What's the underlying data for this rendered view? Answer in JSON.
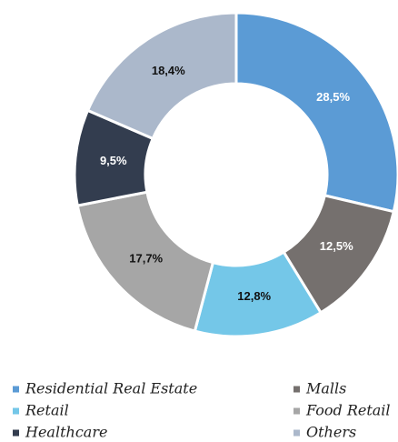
{
  "chart_data": {
    "type": "donut",
    "categories": [
      "Residential Real Estate",
      "Malls",
      "Retail",
      "Food Retail",
      "Healthcare",
      "Others"
    ],
    "values": [
      28.5,
      12.5,
      12.8,
      17.7,
      9.5,
      18.4
    ],
    "value_labels": [
      "28,5%",
      "12,5%",
      "12,8%",
      "17,7%",
      "9,5%",
      "18,4%"
    ],
    "colors": [
      "#5b9bd5",
      "#75706e",
      "#74c7e8",
      "#a6a6a6",
      "#333d4f",
      "#abb8cb"
    ],
    "legend": "bottom"
  }
}
